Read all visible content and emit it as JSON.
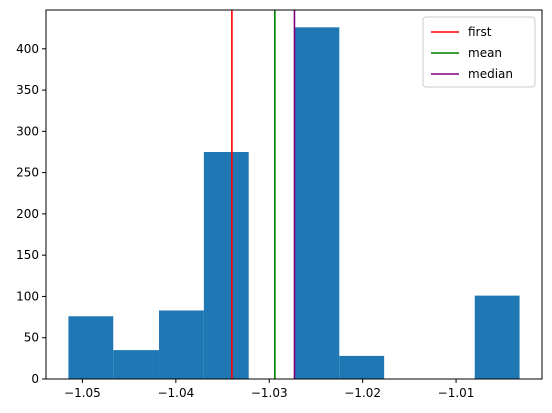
{
  "chart_data": {
    "type": "histogram",
    "title": "",
    "xlabel": "",
    "ylabel": "",
    "bins": [
      {
        "x0": -1.0515,
        "x1": -1.0467,
        "count": 76
      },
      {
        "x0": -1.0467,
        "x1": -1.0418,
        "count": 35
      },
      {
        "x0": -1.0418,
        "x1": -1.037,
        "count": 83
      },
      {
        "x0": -1.037,
        "x1": -1.0322,
        "count": 275
      },
      {
        "x0": -1.0322,
        "x1": -1.0273,
        "count": 0
      },
      {
        "x0": -1.0273,
        "x1": -1.0225,
        "count": 426
      },
      {
        "x0": -1.0225,
        "x1": -1.0177,
        "count": 28
      },
      {
        "x0": -1.0177,
        "x1": -1.0128,
        "count": 0
      },
      {
        "x0": -1.0128,
        "x1": -1.008,
        "count": 0
      },
      {
        "x0": -1.008,
        "x1": -1.0032,
        "count": 101
      }
    ],
    "bar_color": "#1f77b4",
    "vlines": [
      {
        "name": "first",
        "x": -1.034,
        "color": "#ff0000"
      },
      {
        "name": "mean",
        "x": -1.0294,
        "color": "#008000"
      },
      {
        "name": "median",
        "x": -1.0273,
        "color": "#800080"
      }
    ],
    "xlim": [
      -1.0539,
      -1.0008
    ],
    "ylim": [
      0,
      447
    ],
    "xticks": [
      {
        "value": -1.05,
        "label": "−1.05"
      },
      {
        "value": -1.04,
        "label": "−1.04"
      },
      {
        "value": -1.03,
        "label": "−1.03"
      },
      {
        "value": -1.02,
        "label": "−1.02"
      },
      {
        "value": -1.01,
        "label": "−1.01"
      }
    ],
    "yticks": [
      {
        "value": 0,
        "label": "0"
      },
      {
        "value": 50,
        "label": "50"
      },
      {
        "value": 100,
        "label": "100"
      },
      {
        "value": 150,
        "label": "150"
      },
      {
        "value": 200,
        "label": "200"
      },
      {
        "value": 250,
        "label": "250"
      },
      {
        "value": 300,
        "label": "300"
      },
      {
        "value": 350,
        "label": "350"
      },
      {
        "value": 400,
        "label": "400"
      }
    ],
    "legend": {
      "placement": "top-right",
      "entries": [
        {
          "label": "first",
          "color": "#ff0000"
        },
        {
          "label": "mean",
          "color": "#008000"
        },
        {
          "label": "median",
          "color": "#800080"
        }
      ]
    }
  }
}
